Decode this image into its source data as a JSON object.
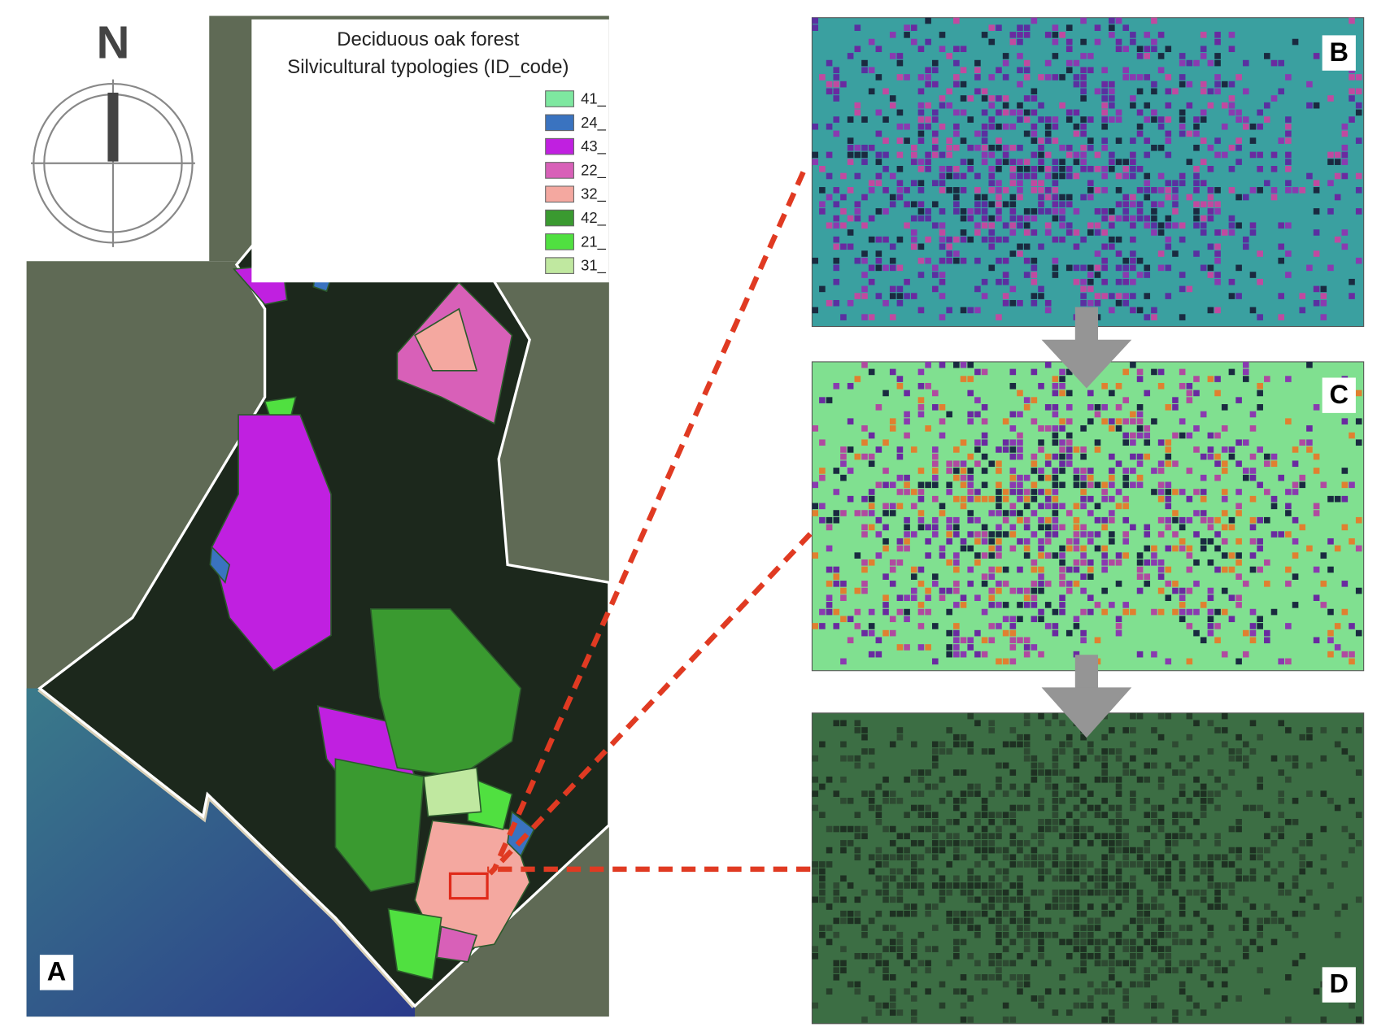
{
  "compass": {
    "label": "N"
  },
  "legend": {
    "title": [
      "Deciduous oak forest",
      "Silvicultural typologies (ID_code)"
    ],
    "items": [
      {
        "code": "41_",
        "color": "#7ee8a0"
      },
      {
        "code": "24_",
        "color": "#3a73c0"
      },
      {
        "code": "43_",
        "color": "#c020e0"
      },
      {
        "code": "22_",
        "color": "#d860b8"
      },
      {
        "code": "32_",
        "color": "#f4a8a0"
      },
      {
        "code": "42_",
        "color": "#3a9a30"
      },
      {
        "code": "21_",
        "color": "#50e040"
      },
      {
        "code": "31_",
        "color": "#c0e8a0"
      }
    ]
  },
  "panels": [
    {
      "label": "A"
    },
    {
      "label": "B"
    },
    {
      "label": "C"
    },
    {
      "label": "D"
    }
  ]
}
